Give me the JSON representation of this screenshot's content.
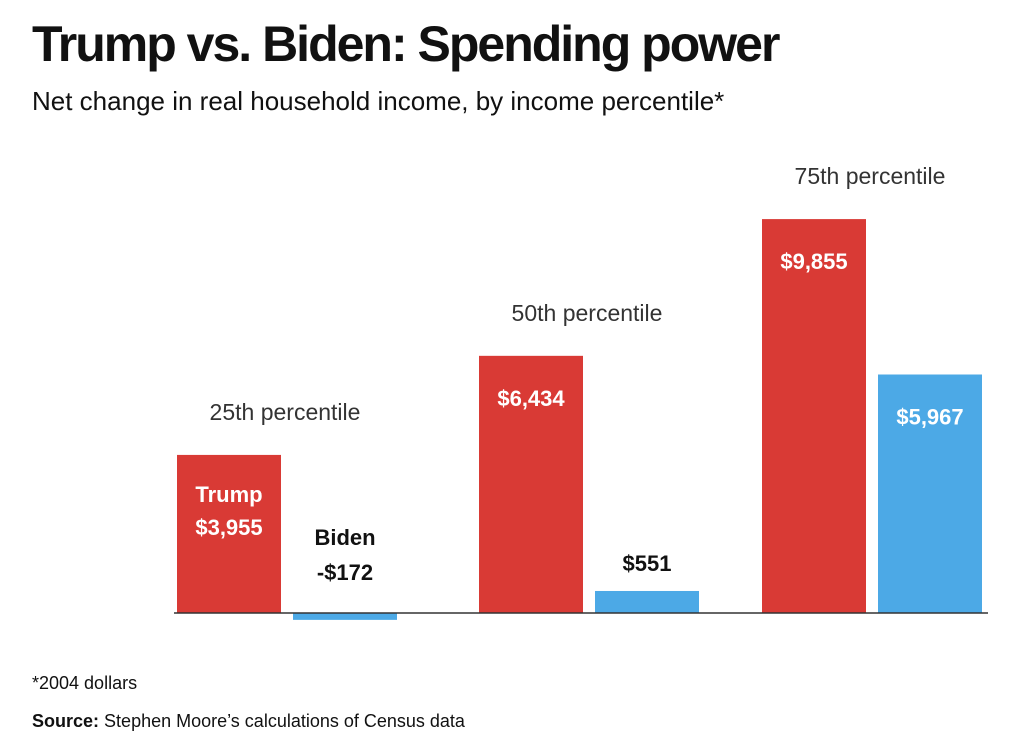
{
  "title": "Trump vs. Biden: Spending power",
  "subtitle": "Net change in real household income, by income percentile*",
  "footnote": "*2004 dollars",
  "source": {
    "label": "Source:",
    "text": "Stephen Moore’s calculations of Census data"
  },
  "colors": {
    "trump": "#d93a35",
    "biden": "#4ca9e6",
    "axis": "#333333",
    "label_light": "#ffffff",
    "label_dark": "#111111",
    "category_label": "#333333"
  },
  "chart_data": {
    "type": "bar",
    "title": "Trump vs. Biden: Spending power",
    "subtitle": "Net change in real household income, by income percentile*",
    "categories": [
      "25th percentile",
      "50th percentile",
      "75th percentile"
    ],
    "series": [
      {
        "name": "Trump",
        "values": [
          3955,
          6434,
          9855
        ],
        "labels": [
          "$3,955",
          "$6,434",
          "$9,855"
        ],
        "color": "#d93a35"
      },
      {
        "name": "Biden",
        "values": [
          -172,
          551,
          5967
        ],
        "labels": [
          "-$172",
          "$551",
          "$5,967"
        ],
        "color": "#4ca9e6"
      }
    ],
    "xlabel": "",
    "ylabel": "",
    "ylim": [
      -600,
      11500
    ],
    "grid": false,
    "legend": "none (series names shown inline on first group)"
  }
}
